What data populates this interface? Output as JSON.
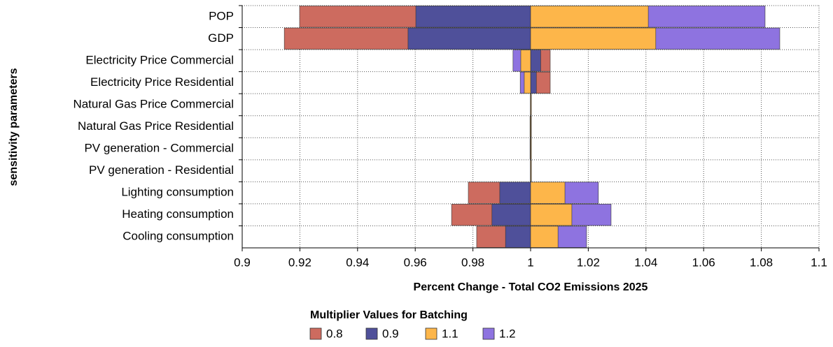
{
  "chart_data": {
    "type": "tornado",
    "x_label": "Percent Change - Total CO2 Emissions 2025",
    "y_label": "sensitivity parameters",
    "legend_title": "Multiplier Values for Batching",
    "categories": [
      "POP",
      "GDP",
      "Electricity Price Commercial",
      "Electricity Price Residential",
      "Natural Gas Price Commercial",
      "Natural Gas Price Residential",
      "PV generation - Commercial",
      "PV generation - Residential",
      "Lighting consumption",
      "Heating consumption",
      "Cooling consumption"
    ],
    "base": 1,
    "series": [
      {
        "name": "0.8",
        "color": "#cd6b5f",
        "values": [
          0.9199,
          0.9146,
          1.0068,
          1.0068,
          1.0001,
          0.9998,
          1.0002,
          1.0,
          0.9784,
          0.9726,
          0.9813
        ]
      },
      {
        "name": "0.9",
        "color": "#4f509a",
        "values": [
          0.9602,
          0.9575,
          1.0035,
          1.002,
          1.00005,
          1.0001,
          0.9999,
          1.0,
          0.9893,
          0.9866,
          0.9913
        ]
      },
      {
        "name": "1.1",
        "color": "#fdb64a",
        "values": [
          1.0408,
          1.0434,
          0.9966,
          0.9978,
          0.99995,
          0.9999,
          1.0001,
          1.0001,
          1.0119,
          1.0143,
          1.0095
        ]
      },
      {
        "name": "1.2",
        "color": "#8e73e0",
        "values": [
          1.0813,
          1.0864,
          0.9939,
          0.9964,
          0.9999,
          1.0002,
          0.9998,
          0.9999,
          1.0235,
          1.0279,
          1.0194
        ]
      }
    ],
    "xlim": [
      0.9,
      1.1
    ],
    "xticks": [
      0.9,
      0.92,
      0.94,
      0.96,
      0.98,
      1,
      1.02,
      1.04,
      1.06,
      1.08,
      1.1
    ],
    "grid": true
  }
}
